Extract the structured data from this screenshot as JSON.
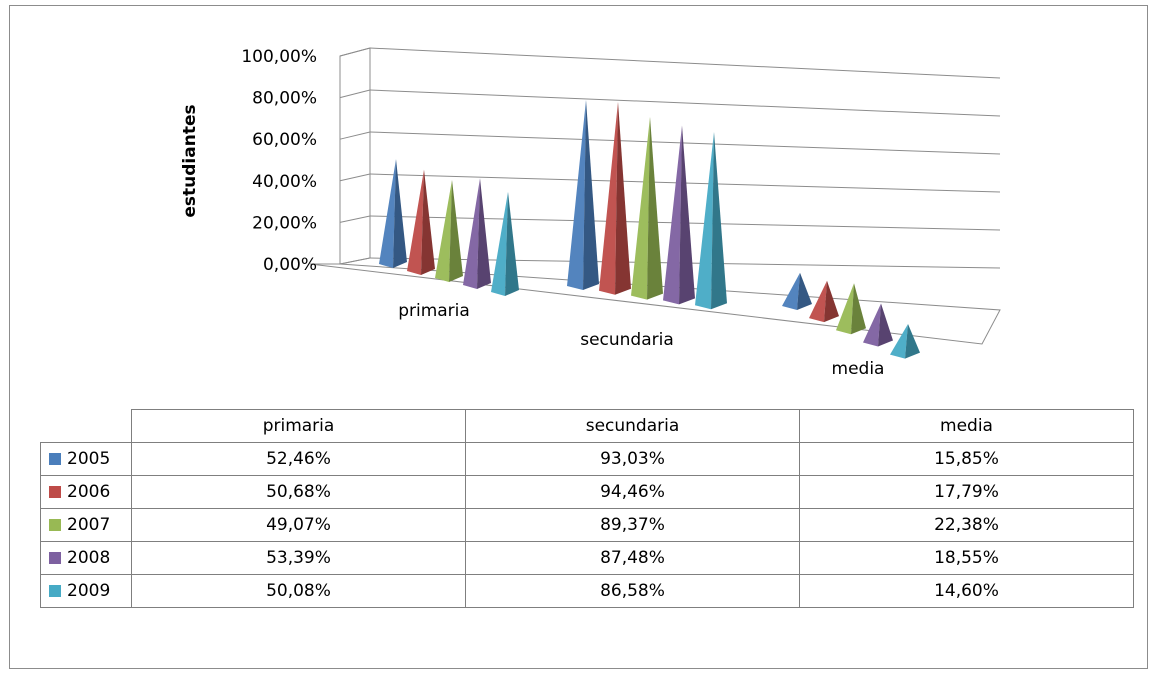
{
  "chart_data": {
    "type": "bar",
    "style": "3d-pyramid",
    "categories": [
      "primaria",
      "secundaria",
      "media"
    ],
    "series": [
      {
        "name": "2005",
        "color": "#4a7ebb",
        "values": [
          52.46,
          93.03,
          15.85
        ],
        "labels": [
          "52,46%",
          "93,03%",
          "15,85%"
        ]
      },
      {
        "name": "2006",
        "color": "#be4b48",
        "values": [
          50.68,
          94.46,
          17.79
        ],
        "labels": [
          "50,68%",
          "94,46%",
          "17,79%"
        ]
      },
      {
        "name": "2007",
        "color": "#98b954",
        "values": [
          49.07,
          89.37,
          22.38
        ],
        "labels": [
          "49,07%",
          "89,37%",
          "22,38%"
        ]
      },
      {
        "name": "2008",
        "color": "#7d60a0",
        "values": [
          53.39,
          87.48,
          18.55
        ],
        "labels": [
          "53,39%",
          "87,48%",
          "18,55%"
        ]
      },
      {
        "name": "2009",
        "color": "#46aac5",
        "values": [
          50.08,
          86.58,
          14.6
        ],
        "labels": [
          "50,08%",
          "86,58%",
          "14,60%"
        ]
      }
    ],
    "ylabel": "estudiantes",
    "yticks": [
      "0,00%",
      "20,00%",
      "40,00%",
      "60,00%",
      "80,00%",
      "100,00%"
    ],
    "ylim": [
      0,
      100
    ],
    "grid": true,
    "legend": "data-table-below"
  }
}
